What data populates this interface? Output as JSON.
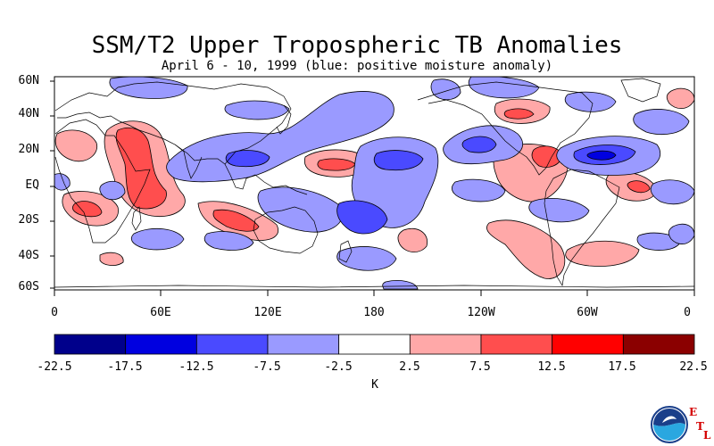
{
  "title": "SSM/T2 Upper Tropospheric TB Anomalies",
  "subtitle": "April 6 - 10, 1999 (blue: positive moisture anomaly)",
  "lat_labels": [
    "60N",
    "40N",
    "20N",
    "EQ",
    "20S",
    "40S",
    "60S"
  ],
  "lon_labels": [
    "0",
    "60E",
    "120E",
    "180",
    "120W",
    "60W",
    "0"
  ],
  "colorbar": {
    "labels": [
      "-22.5",
      "-17.5",
      "-12.5",
      "-7.5",
      "-2.5",
      "2.5",
      "7.5",
      "12.5",
      "17.5",
      "22.5"
    ],
    "colors": [
      "#00008b",
      "#0000e0",
      "#4a4aff",
      "#9a9aff",
      "#ffffff",
      "#ffa8a8",
      "#ff4e4e",
      "#ff0000",
      "#8b0000"
    ],
    "units": "K"
  },
  "logo": {
    "name": "NOAA",
    "letters": [
      "E",
      "T",
      "L"
    ]
  }
}
